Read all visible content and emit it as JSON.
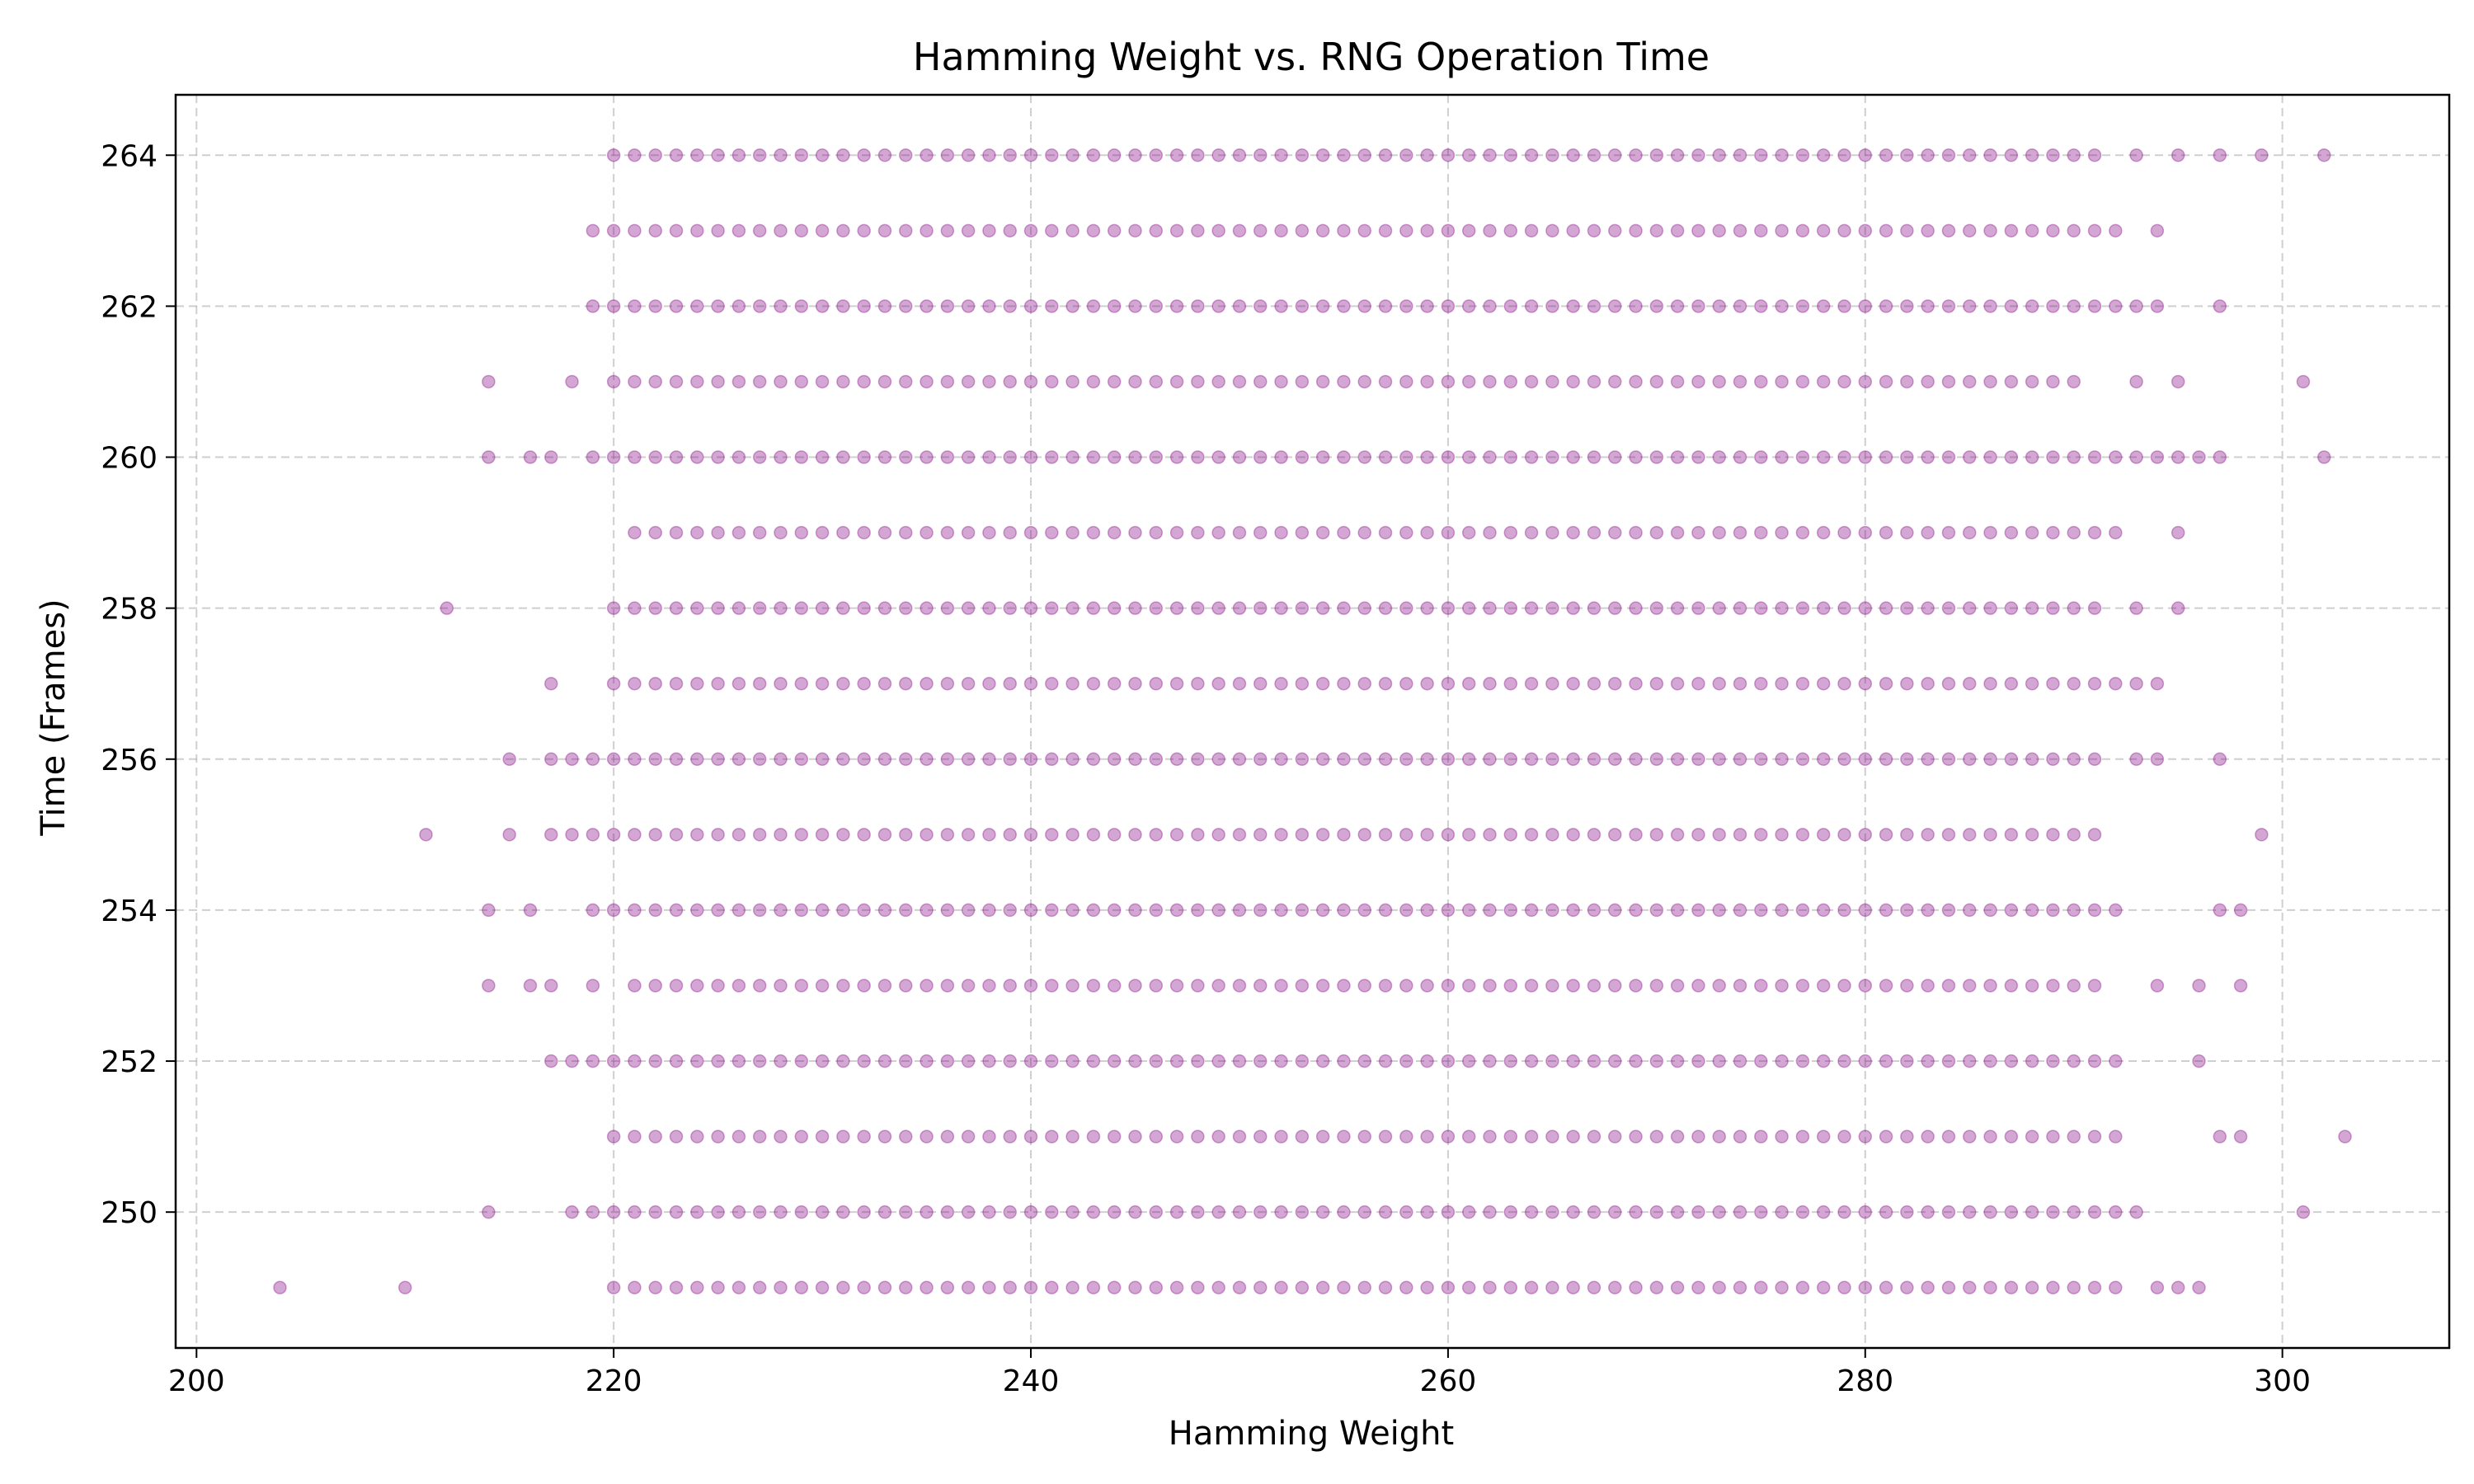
{
  "chart_data": {
    "type": "scatter",
    "title": "Hamming Weight vs. RNG Operation Time",
    "xlabel": "Hamming Weight",
    "ylabel": "Time (Frames)",
    "xlim": [
      199,
      308
    ],
    "ylim": [
      248.2,
      264.8
    ],
    "xticks": [
      200,
      220,
      240,
      260,
      280,
      300
    ],
    "yticks": [
      250,
      252,
      254,
      256,
      258,
      260,
      262,
      264
    ],
    "grid": true,
    "color": "#800080",
    "point_alpha": 0.35,
    "series": [
      {
        "rows": [
          {
            "y": 264,
            "x_min": 220,
            "x_max": 291,
            "extra_x": [
              293,
              295,
              297,
              299,
              302
            ]
          },
          {
            "y": 263,
            "x_min": 219,
            "x_max": 292,
            "extra_x": [
              294
            ]
          },
          {
            "y": 262,
            "x_min": 219,
            "x_max": 294,
            "extra_x": [
              297
            ]
          },
          {
            "y": 261,
            "x_min": 220,
            "x_max": 290,
            "extra_x": [
              214,
              218,
              293,
              295,
              301
            ]
          },
          {
            "y": 260,
            "x_min": 219,
            "x_max": 295,
            "extra_x": [
              214,
              216,
              217,
              296,
              297,
              302
            ]
          },
          {
            "y": 259,
            "x_min": 221,
            "x_max": 292,
            "extra_x": [
              295
            ]
          },
          {
            "y": 258,
            "x_min": 220,
            "x_max": 291,
            "extra_x": [
              212,
              293,
              295
            ]
          },
          {
            "y": 257,
            "x_min": 220,
            "x_max": 294,
            "extra_x": [
              217
            ]
          },
          {
            "y": 256,
            "x_min": 218,
            "x_max": 291,
            "extra_x": [
              215,
              217,
              293,
              294,
              297
            ]
          },
          {
            "y": 255,
            "x_min": 217,
            "x_max": 291,
            "extra_x": [
              211,
              215,
              299
            ]
          },
          {
            "y": 254,
            "x_min": 219,
            "x_max": 292,
            "extra_x": [
              214,
              216,
              297,
              298
            ]
          },
          {
            "y": 253,
            "x_min": 221,
            "x_max": 291,
            "extra_x": [
              214,
              216,
              217,
              219,
              294,
              296,
              298
            ]
          },
          {
            "y": 252,
            "x_min": 217,
            "x_max": 292,
            "extra_x": [
              296
            ]
          },
          {
            "y": 251,
            "x_min": 220,
            "x_max": 292,
            "extra_x": [
              297,
              298,
              303
            ]
          },
          {
            "y": 250,
            "x_min": 218,
            "x_max": 293,
            "extra_x": [
              214,
              301
            ]
          },
          {
            "y": 249,
            "x_min": 220,
            "x_max": 292,
            "extra_x": [
              204,
              210,
              294,
              295,
              296
            ]
          }
        ]
      }
    ]
  }
}
